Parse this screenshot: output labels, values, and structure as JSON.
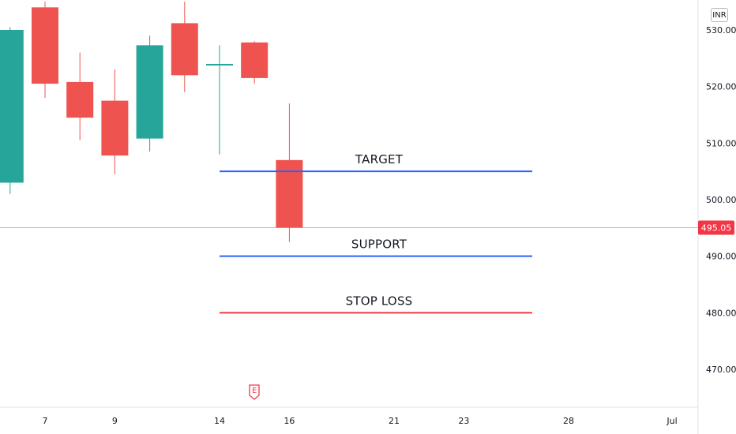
{
  "currency": "INR",
  "colors": {
    "up": "#26a69a",
    "down": "#ef5350",
    "target_line": "#2962ff",
    "support_line": "#2962ff",
    "stop_loss_line": "#f23645",
    "price_line": "#f7a3aa",
    "axis_text": "#131722"
  },
  "earnings_marker": {
    "label": "E",
    "date": "15"
  },
  "chart_data": {
    "type": "candlestick",
    "title": "",
    "xlabel": "",
    "ylabel": "",
    "ylim": [
      465,
      535
    ],
    "grid": false,
    "x_ticks": [
      "7",
      "9",
      "14",
      "16",
      "21",
      "23",
      "28",
      "Jul"
    ],
    "y_ticks": [
      "470.00",
      "480.00",
      "490.00",
      "500.00",
      "510.00",
      "520.00",
      "530.00"
    ],
    "last_price": "495.05",
    "candles": [
      {
        "date": "6",
        "open": 503.0,
        "high": 530.5,
        "low": 501.0,
        "close": 530.0
      },
      {
        "date": "7",
        "open": 534.0,
        "high": 535.0,
        "low": 518.0,
        "close": 520.5
      },
      {
        "date": "8",
        "open": 520.8,
        "high": 526.0,
        "low": 510.5,
        "close": 514.5
      },
      {
        "date": "9",
        "open": 517.5,
        "high": 523.0,
        "low": 504.5,
        "close": 507.8
      },
      {
        "date": "10",
        "open": 510.8,
        "high": 529.0,
        "low": 508.5,
        "close": 527.3
      },
      {
        "date": "13",
        "open": 531.2,
        "high": 535.0,
        "low": 519.0,
        "close": 522.0
      },
      {
        "date": "14",
        "open": 524.0,
        "high": 527.3,
        "low": 508.0,
        "close": 524.0
      },
      {
        "date": "15",
        "open": 527.8,
        "high": 528.0,
        "low": 520.5,
        "close": 521.5
      },
      {
        "date": "16",
        "open": 507.0,
        "high": 517.0,
        "low": 492.5,
        "close": 495.05
      }
    ],
    "annotations": [
      {
        "label": "TARGET",
        "value": 505.0,
        "from": "14",
        "to": "26"
      },
      {
        "label": "SUPPORT",
        "value": 490.0,
        "from": "14",
        "to": "26"
      },
      {
        "label": "STOP LOSS",
        "value": 480.0,
        "from": "14",
        "to": "26"
      }
    ]
  }
}
